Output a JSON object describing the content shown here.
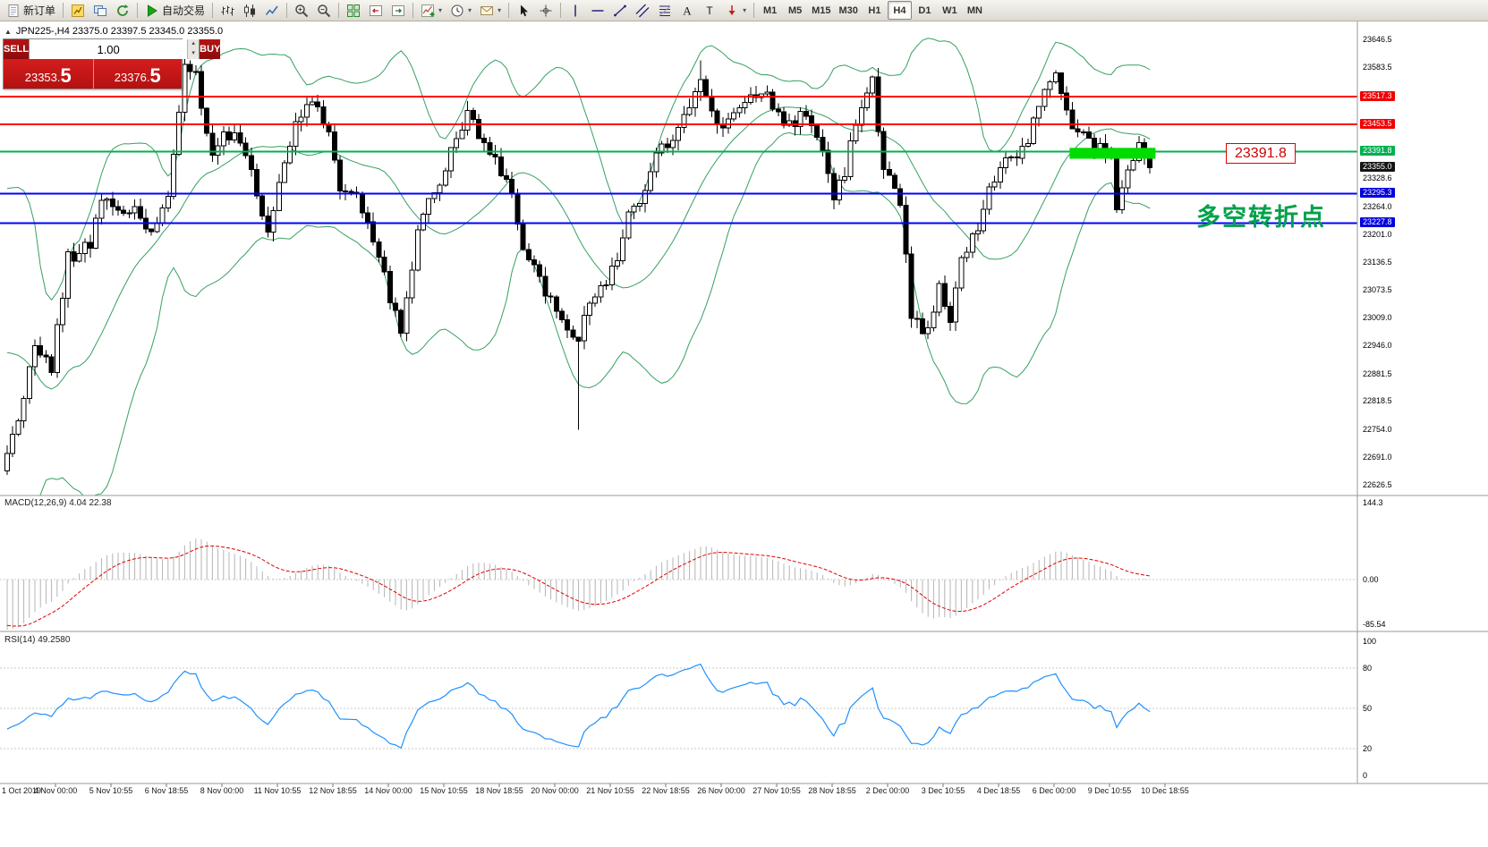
{
  "icons": {
    "collapse": "▲",
    "spin_up": "▴",
    "spin_down": "▾"
  },
  "toolbar": {
    "groups": [
      {
        "items": [
          {
            "name": "new-order-button",
            "icon": "doc-new",
            "label": "新订单"
          }
        ]
      },
      {
        "items": [
          {
            "name": "new-chart-button",
            "icon": "chart-new"
          },
          {
            "name": "profiles-button",
            "icon": "profiles"
          },
          {
            "name": "refresh-button",
            "icon": "cycle"
          }
        ]
      },
      {
        "items": [
          {
            "name": "autotrading-button",
            "icon": "play",
            "label": "自动交易"
          }
        ]
      },
      {
        "items": [
          {
            "name": "bar-chart-button",
            "icon": "bars"
          },
          {
            "name": "candle-chart-button",
            "icon": "candles"
          },
          {
            "name": "line-chart-button",
            "icon": "linechart"
          }
        ]
      },
      {
        "items": [
          {
            "name": "zoom-in-button",
            "icon": "zoom-in"
          },
          {
            "name": "zoom-out-button",
            "icon": "zoom-out"
          }
        ]
      },
      {
        "items": [
          {
            "name": "tile-windows-button",
            "icon": "tile"
          },
          {
            "name": "chart-shift-button",
            "icon": "shift"
          },
          {
            "name": "auto-scroll-button",
            "icon": "autoscroll"
          }
        ]
      },
      {
        "items": [
          {
            "name": "indicators-button",
            "icon": "indicators",
            "caret": true
          },
          {
            "name": "periods-button",
            "icon": "periods",
            "caret": true
          },
          {
            "name": "templates-button",
            "icon": "templates",
            "caret": true
          }
        ]
      },
      {
        "items": [
          {
            "name": "cursor-button",
            "icon": "cursor"
          },
          {
            "name": "crosshair-button",
            "icon": "crosshair"
          }
        ]
      },
      {
        "items": [
          {
            "name": "vertical-line-button",
            "icon": "vline"
          },
          {
            "name": "horizontal-line-button",
            "icon": "hline"
          },
          {
            "name": "trendline-button",
            "icon": "trendline"
          },
          {
            "name": "channel-button",
            "icon": "channel"
          },
          {
            "name": "fibonacci-button",
            "icon": "fibo"
          },
          {
            "name": "text-button",
            "icon": "text"
          },
          {
            "name": "text-label-button",
            "icon": "label"
          },
          {
            "name": "arrows-button",
            "icon": "arrows",
            "caret": true
          }
        ]
      },
      {
        "items": [
          {
            "name": "tf-m1-button",
            "tf": "M1"
          },
          {
            "name": "tf-m5-button",
            "tf": "M5"
          },
          {
            "name": "tf-m15-button",
            "tf": "M15"
          },
          {
            "name": "tf-m30-button",
            "tf": "M30"
          },
          {
            "name": "tf-h1-button",
            "tf": "H1"
          },
          {
            "name": "tf-h4-button",
            "tf": "H4",
            "active": true
          },
          {
            "name": "tf-d1-button",
            "tf": "D1"
          },
          {
            "name": "tf-w1-button",
            "tf": "W1"
          },
          {
            "name": "tf-mn-button",
            "tf": "MN"
          }
        ]
      }
    ]
  },
  "chart": {
    "title": "JPN225-,H4 23375.0 23397.5 23345.0 23355.0"
  },
  "trade_panel": {
    "sell_label": "SELL",
    "buy_label": "BUY",
    "volume": "1.00",
    "sell_price": "23353.5",
    "buy_price": "23376.5"
  },
  "annotations": {
    "price_flag": "23391.8",
    "note": "多空转折点"
  },
  "price_axis": {
    "items": [
      {
        "text": "23646.5",
        "value": 23646.5,
        "style": "plain"
      },
      {
        "text": "23583.5",
        "value": 23583.5,
        "style": "plain"
      },
      {
        "text": "23517.3",
        "value": 23517.3,
        "style": "red"
      },
      {
        "text": "23453.5",
        "value": 23453.5,
        "style": "red"
      },
      {
        "text": "23391.8",
        "value": 23391.8,
        "style": "green"
      },
      {
        "text": "23355.0",
        "value": 23355.0,
        "style": "black"
      },
      {
        "text": "23328.6",
        "value": 23328.6,
        "style": "plain"
      },
      {
        "text": "23295.3",
        "value": 23295.3,
        "style": "blue"
      },
      {
        "text": "23264.0",
        "value": 23264.0,
        "style": "plain"
      },
      {
        "text": "23227.8",
        "value": 23227.8,
        "style": "blue"
      },
      {
        "text": "23201.0",
        "value": 23201.0,
        "style": "plain"
      },
      {
        "text": "23136.5",
        "value": 23136.5,
        "style": "plain"
      },
      {
        "text": "23073.5",
        "value": 23073.5,
        "style": "plain"
      },
      {
        "text": "23009.0",
        "value": 23009.0,
        "style": "plain"
      },
      {
        "text": "22946.0",
        "value": 22946.0,
        "style": "plain"
      },
      {
        "text": "22881.5",
        "value": 22881.5,
        "style": "plain"
      },
      {
        "text": "22818.5",
        "value": 22818.5,
        "style": "plain"
      },
      {
        "text": "22754.0",
        "value": 22754.0,
        "style": "plain"
      },
      {
        "text": "22691.0",
        "value": 22691.0,
        "style": "plain"
      },
      {
        "text": "22626.5",
        "value": 22626.5,
        "style": "plain"
      }
    ]
  },
  "macd_panel": {
    "label": "MACD(12,26,9) 4.04 22.38",
    "axis": [
      "144.3",
      "0.00",
      "-85.54"
    ]
  },
  "rsi_panel": {
    "label": "RSI(14) 49.2580",
    "axis_values": [
      100,
      80,
      50,
      20,
      0
    ],
    "levels": [
      80,
      50,
      20
    ]
  },
  "time_axis": {
    "labels": [
      "1 Oct 2019",
      "4 Nov 00:00",
      "5 Nov 10:55",
      "6 Nov 18:55",
      "8 Nov 00:00",
      "11 Nov 10:55",
      "12 Nov 18:55",
      "14 Nov 00:00",
      "15 Nov 10:55",
      "18 Nov 18:55",
      "20 Nov 00:00",
      "21 Nov 10:55",
      "22 Nov 18:55",
      "26 Nov 00:00",
      "27 Nov 10:55",
      "28 Nov 18:55",
      "2 Dec 00:00",
      "3 Dec 10:55",
      "4 Dec 18:55",
      "6 Dec 00:00",
      "9 Dec 10:55",
      "10 Dec 18:55"
    ]
  },
  "chart_data": {
    "type": "candlestick",
    "symbol": "JPN225-",
    "period": "H4",
    "ohlc_display": {
      "open": 23375.0,
      "high": 23397.5,
      "low": 23345.0,
      "close": 23355.0
    },
    "price_top": 23646.5,
    "price_bottom": 22626.5,
    "candle_count": 207,
    "last_close": 23355.0,
    "price_waypoints": [
      [
        0,
        22700
      ],
      [
        2,
        22780
      ],
      [
        5,
        22950
      ],
      [
        8,
        22900
      ],
      [
        11,
        23150
      ],
      [
        15,
        23180
      ],
      [
        17,
        23280
      ],
      [
        21,
        23250
      ],
      [
        23,
        23280
      ],
      [
        25,
        23200
      ],
      [
        29,
        23280
      ],
      [
        32,
        23600
      ],
      [
        34,
        23560
      ],
      [
        37,
        23380
      ],
      [
        39,
        23420
      ],
      [
        42,
        23420
      ],
      [
        45,
        23300
      ],
      [
        47,
        23200
      ],
      [
        50,
        23380
      ],
      [
        53,
        23480
      ],
      [
        55,
        23500
      ],
      [
        58,
        23450
      ],
      [
        60,
        23300
      ],
      [
        63,
        23280
      ],
      [
        67,
        23150
      ],
      [
        69,
        23050
      ],
      [
        71,
        22980
      ],
      [
        74,
        23200
      ],
      [
        76,
        23280
      ],
      [
        79,
        23350
      ],
      [
        81,
        23420
      ],
      [
        83,
        23470
      ],
      [
        86,
        23420
      ],
      [
        88,
        23380
      ],
      [
        91,
        23280
      ],
      [
        93,
        23150
      ],
      [
        96,
        23100
      ],
      [
        98,
        23050
      ],
      [
        100,
        23000
      ],
      [
        103,
        22960
      ],
      [
        105,
        23050
      ],
      [
        108,
        23080
      ],
      [
        110,
        23150
      ],
      [
        112,
        23250
      ],
      [
        115,
        23300
      ],
      [
        117,
        23380
      ],
      [
        120,
        23420
      ],
      [
        122,
        23470
      ],
      [
        125,
        23550
      ],
      [
        127,
        23480
      ],
      [
        129,
        23450
      ],
      [
        132,
        23480
      ],
      [
        134,
        23520
      ],
      [
        137,
        23540
      ],
      [
        139,
        23470
      ],
      [
        142,
        23460
      ],
      [
        144,
        23480
      ],
      [
        146,
        23440
      ],
      [
        149,
        23280
      ],
      [
        151,
        23350
      ],
      [
        154,
        23500
      ],
      [
        156,
        23560
      ],
      [
        158,
        23350
      ],
      [
        161,
        23280
      ],
      [
        163,
        23000
      ],
      [
        166,
        22980
      ],
      [
        168,
        23080
      ],
      [
        170,
        23000
      ],
      [
        172,
        23150
      ],
      [
        175,
        23220
      ],
      [
        177,
        23300
      ],
      [
        179,
        23350
      ],
      [
        182,
        23380
      ],
      [
        184,
        23420
      ],
      [
        187,
        23540
      ],
      [
        189,
        23560
      ],
      [
        192,
        23460
      ],
      [
        194,
        23420
      ],
      [
        196,
        23400
      ],
      [
        199,
        23380
      ],
      [
        200,
        23260
      ],
      [
        202,
        23350
      ],
      [
        204,
        23400
      ],
      [
        206,
        23355
      ]
    ],
    "lead_in": [
      23500,
      23450,
      23350,
      23200,
      23050,
      22900,
      22800,
      22850,
      23000,
      23150,
      23250,
      23350,
      23200,
      23000,
      22850,
      22750,
      22800,
      22950,
      23100,
      23000,
      22850,
      22750,
      22800,
      22760,
      22720
    ],
    "wick_overrides": [
      {
        "index": 103,
        "low": 22755
      },
      {
        "index": 125,
        "high": 23600
      }
    ],
    "levels": [
      {
        "price": 23517.3,
        "color": "#ff0000"
      },
      {
        "price": 23453.5,
        "color": "#ff0000"
      },
      {
        "price": 23391.8,
        "color": "#00b050"
      },
      {
        "price": 23295.3,
        "color": "#0000ff"
      },
      {
        "price": 23227.8,
        "color": "#0000ff"
      }
    ],
    "highlight_zone": {
      "from_candle": 192,
      "to_candle": 207,
      "price_high": 23400,
      "price_low": 23375,
      "color": "#00dc00"
    },
    "bollinger": {
      "period": 20,
      "deviation": 2
    },
    "macd": {
      "fast": 12,
      "slow": 26,
      "signal": 9
    },
    "rsi": {
      "period": 14
    }
  }
}
